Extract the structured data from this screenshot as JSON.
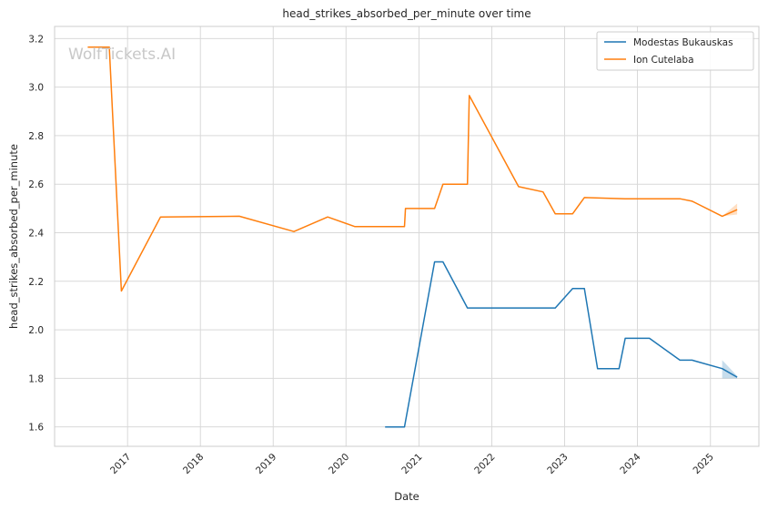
{
  "watermark": "WolfTickets.AI",
  "chart_data": {
    "type": "line",
    "title": "head_strikes_absorbed_per_minute over time",
    "xlabel": "Date",
    "ylabel": "head_strikes_absorbed_per_minute",
    "xlim": [
      "2016-01-01",
      "2025-09-01"
    ],
    "ylim": [
      1.52,
      3.25
    ],
    "x_ticks": [
      "2017",
      "2018",
      "2019",
      "2020",
      "2021",
      "2022",
      "2023",
      "2024",
      "2025"
    ],
    "y_ticks": [
      1.6,
      1.8,
      2.0,
      2.2,
      2.4,
      2.6,
      2.8,
      3.0,
      3.2
    ],
    "grid": true,
    "legend_position": "top-right",
    "series": [
      {
        "name": "Modestas Bukauskas",
        "color": "#1f77b4",
        "points": [
          [
            "2020-07-15",
            1.6
          ],
          [
            "2020-10-20",
            1.6
          ],
          [
            "2021-03-20",
            2.28
          ],
          [
            "2021-05-01",
            2.28
          ],
          [
            "2021-09-01",
            2.09
          ],
          [
            "2022-11-15",
            2.09
          ],
          [
            "2023-02-10",
            2.17
          ],
          [
            "2023-04-10",
            2.17
          ],
          [
            "2023-06-15",
            1.84
          ],
          [
            "2023-10-01",
            1.84
          ],
          [
            "2023-11-01",
            1.965
          ],
          [
            "2024-03-01",
            1.965
          ],
          [
            "2024-08-01",
            1.875
          ],
          [
            "2024-10-01",
            1.875
          ],
          [
            "2025-03-01",
            1.84
          ],
          [
            "2025-05-15",
            1.805
          ]
        ],
        "band": [
          [
            "2025-03-01",
            1.8,
            1.875
          ],
          [
            "2025-05-15",
            1.8,
            1.81
          ]
        ]
      },
      {
        "name": "Ion Cutelaba",
        "color": "#ff7f0e",
        "points": [
          [
            "2016-06-15",
            3.165
          ],
          [
            "2016-10-01",
            3.165
          ],
          [
            "2016-12-01",
            2.16
          ],
          [
            "2017-06-15",
            2.465
          ],
          [
            "2018-07-15",
            2.468
          ],
          [
            "2019-04-15",
            2.405
          ],
          [
            "2019-10-01",
            2.465
          ],
          [
            "2020-02-15",
            2.425
          ],
          [
            "2020-10-20",
            2.425
          ],
          [
            "2020-10-25",
            2.5
          ],
          [
            "2021-03-20",
            2.5
          ],
          [
            "2021-05-01",
            2.6
          ],
          [
            "2021-09-01",
            2.6
          ],
          [
            "2021-09-10",
            2.965
          ],
          [
            "2022-05-15",
            2.59
          ],
          [
            "2022-09-15",
            2.568
          ],
          [
            "2022-11-15",
            2.478
          ],
          [
            "2023-02-10",
            2.478
          ],
          [
            "2023-04-10",
            2.545
          ],
          [
            "2023-11-01",
            2.54
          ],
          [
            "2024-08-01",
            2.54
          ],
          [
            "2024-10-01",
            2.53
          ],
          [
            "2025-03-01",
            2.468
          ],
          [
            "2025-05-15",
            2.495
          ]
        ],
        "band": [
          [
            "2025-03-01",
            2.468,
            2.468
          ],
          [
            "2025-05-15",
            2.475,
            2.52
          ]
        ]
      }
    ]
  }
}
